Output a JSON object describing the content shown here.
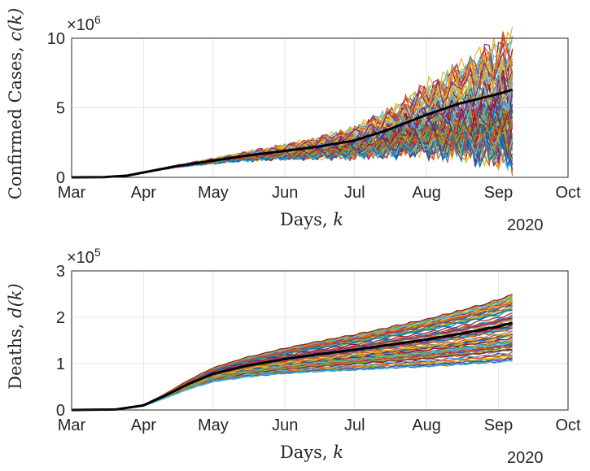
{
  "chart_data": [
    {
      "type": "line",
      "ylabel_text": "Confirmed Cases, ",
      "ylabel_var": "c(k)",
      "xlabel_text": "Days, ",
      "xlabel_var": "k",
      "exponent_label": "×10",
      "exponent_power": "6",
      "year_label": "2020",
      "x_ticks": [
        "Mar",
        "Apr",
        "May",
        "Jun",
        "Jul",
        "Aug",
        "Sep",
        "Oct"
      ],
      "x_range": [
        "2020-03-01",
        "2020-10-01"
      ],
      "y_ticks": [
        "0",
        "5",
        "10"
      ],
      "ylim": [
        0,
        10
      ],
      "grid": true,
      "mean_series": {
        "color": "#000000",
        "x": [
          "2020-03-01",
          "2020-03-15",
          "2020-03-25",
          "2020-04-01",
          "2020-04-15",
          "2020-05-01",
          "2020-05-15",
          "2020-06-01",
          "2020-06-15",
          "2020-07-01",
          "2020-07-15",
          "2020-08-01",
          "2020-08-15",
          "2020-09-01",
          "2020-09-07"
        ],
        "y": [
          0,
          0.01,
          0.12,
          0.35,
          0.8,
          1.2,
          1.55,
          1.9,
          2.2,
          2.65,
          3.4,
          4.5,
          5.3,
          6.0,
          6.3
        ]
      },
      "ensemble": {
        "count": 100,
        "end_min": 1.9,
        "end_max": 9.7,
        "colors": [
          "#0072BD",
          "#D95319",
          "#EDB120",
          "#7E2F8E",
          "#77AC30",
          "#4DBEEE",
          "#A2142F"
        ]
      }
    },
    {
      "type": "line",
      "ylabel_text": "Deaths, ",
      "ylabel_var": "d(k)",
      "xlabel_text": "Days, ",
      "xlabel_var": "k",
      "exponent_label": "×10",
      "exponent_power": "5",
      "year_label": "2020",
      "x_ticks": [
        "Mar",
        "Apr",
        "May",
        "Jun",
        "Jul",
        "Aug",
        "Sep",
        "Oct"
      ],
      "x_range": [
        "2020-03-01",
        "2020-10-01"
      ],
      "y_ticks": [
        "0",
        "1",
        "2",
        "3"
      ],
      "ylim": [
        0,
        3
      ],
      "grid": true,
      "mean_series": {
        "color": "#000000",
        "x": [
          "2020-03-01",
          "2020-03-20",
          "2020-04-01",
          "2020-04-10",
          "2020-04-20",
          "2020-05-01",
          "2020-05-15",
          "2020-06-01",
          "2020-06-15",
          "2020-07-01",
          "2020-07-15",
          "2020-08-01",
          "2020-08-15",
          "2020-09-01",
          "2020-09-07"
        ],
        "y": [
          0,
          0.01,
          0.1,
          0.3,
          0.55,
          0.78,
          0.95,
          1.1,
          1.2,
          1.3,
          1.4,
          1.52,
          1.64,
          1.8,
          1.88
        ]
      },
      "ensemble": {
        "count": 100,
        "end_min": 1.05,
        "end_max": 2.5,
        "colors": [
          "#0072BD",
          "#D95319",
          "#EDB120",
          "#7E2F8E",
          "#77AC30",
          "#4DBEEE",
          "#A2142F"
        ]
      }
    }
  ]
}
